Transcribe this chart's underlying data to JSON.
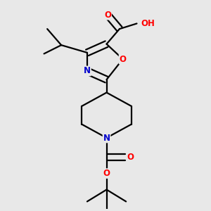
{
  "background_color": "#e8e8e8",
  "bond_width": 1.6,
  "atom_colors": {
    "O": "#ff0000",
    "N": "#0000cc",
    "H": "#5c9090",
    "C": "#000000"
  },
  "xlim": [
    0.1,
    0.9
  ],
  "ylim": [
    0.02,
    0.98
  ]
}
